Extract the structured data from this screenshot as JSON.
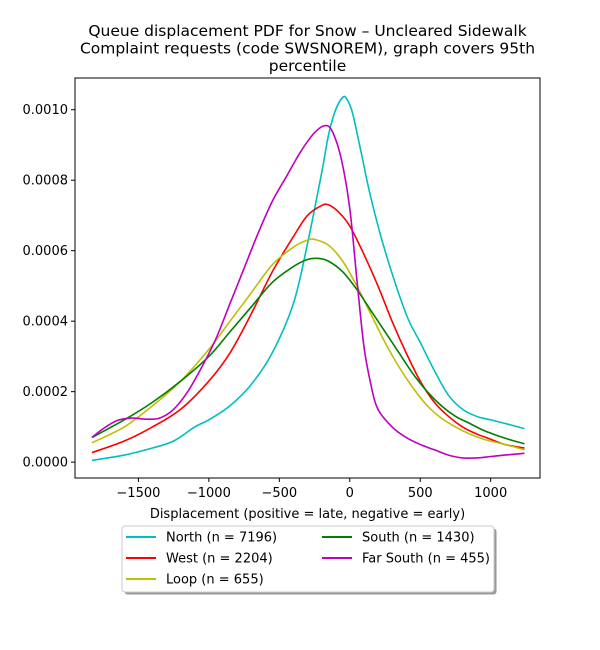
{
  "chart_data": {
    "type": "line",
    "title_lines": [
      "Queue displacement PDF for Snow – Uncleared Sidewalk",
      "Complaint  requests (code SWSNOREM), graph covers 95th",
      "percentile"
    ],
    "xlabel": "Displacement (positive = late, negative = early)",
    "ylabel": "",
    "xlim": [
      -1950,
      1350
    ],
    "ylim": [
      -4.5e-05,
      0.00109
    ],
    "x_ticks": [
      -1500,
      -1000,
      -500,
      0,
      500,
      1000
    ],
    "x_tick_labels": [
      "−1500",
      "−1000",
      "−500",
      "0",
      "500",
      "1000"
    ],
    "y_ticks": [
      0.0,
      0.0002,
      0.0004,
      0.0006,
      0.0008,
      0.001
    ],
    "y_tick_labels": [
      "0.0000",
      "0.0002",
      "0.0004",
      "0.0006",
      "0.0008",
      "0.0010"
    ],
    "grid": false,
    "legend_position": "below plot, centered, 2 columns",
    "series": [
      {
        "name": "North (n = 7196)",
        "color": "#00bfbf",
        "points": [
          [
            -1830,
            5e-06
          ],
          [
            -1600,
            2e-05
          ],
          [
            -1400,
            4e-05
          ],
          [
            -1250,
            6e-05
          ],
          [
            -1100,
            0.0001
          ],
          [
            -1000,
            0.00012
          ],
          [
            -850,
            0.00016
          ],
          [
            -700,
            0.00022
          ],
          [
            -550,
            0.00031
          ],
          [
            -400,
            0.00045
          ],
          [
            -300,
            0.00062
          ],
          [
            -200,
            0.00082
          ],
          [
            -150,
            0.00093
          ],
          [
            -100,
            0.001
          ],
          [
            -50,
            0.001035
          ],
          [
            -20,
            0.00103
          ],
          [
            20,
            0.00099
          ],
          [
            80,
            0.00088
          ],
          [
            150,
            0.00075
          ],
          [
            250,
            0.0006
          ],
          [
            400,
            0.00042
          ],
          [
            500,
            0.00034
          ],
          [
            600,
            0.00026
          ],
          [
            700,
            0.00019
          ],
          [
            800,
            0.00015
          ],
          [
            900,
            0.00013
          ],
          [
            1000,
            0.00012
          ],
          [
            1100,
            0.00011
          ],
          [
            1240,
            9.5e-05
          ]
        ]
      },
      {
        "name": "West (n = 2204)",
        "color": "#ff0000",
        "points": [
          [
            -1830,
            2.7e-05
          ],
          [
            -1600,
            6e-05
          ],
          [
            -1400,
            0.0001
          ],
          [
            -1200,
            0.00015
          ],
          [
            -1000,
            0.00023
          ],
          [
            -850,
            0.00031
          ],
          [
            -700,
            0.00042
          ],
          [
            -550,
            0.00054
          ],
          [
            -400,
            0.00064
          ],
          [
            -300,
            0.0007
          ],
          [
            -200,
            0.000728
          ],
          [
            -150,
            0.00073
          ],
          [
            -80,
            0.00071
          ],
          [
            0,
            0.00067
          ],
          [
            100,
            0.00059
          ],
          [
            200,
            0.0005
          ],
          [
            300,
            0.0004
          ],
          [
            400,
            0.00031
          ],
          [
            500,
            0.00023
          ],
          [
            600,
            0.00017
          ],
          [
            700,
            0.00013
          ],
          [
            800,
            0.0001
          ],
          [
            900,
            8e-05
          ],
          [
            1000,
            6.5e-05
          ],
          [
            1100,
            5e-05
          ],
          [
            1240,
            4e-05
          ]
        ]
      },
      {
        "name": "Loop (n = 655)",
        "color": "#bfbf00",
        "points": [
          [
            -1830,
            5.5e-05
          ],
          [
            -1600,
            0.0001
          ],
          [
            -1400,
            0.00016
          ],
          [
            -1200,
            0.00023
          ],
          [
            -1000,
            0.00032
          ],
          [
            -850,
            0.0004
          ],
          [
            -700,
            0.00048
          ],
          [
            -550,
            0.00056
          ],
          [
            -400,
            0.00061
          ],
          [
            -300,
            0.00063
          ],
          [
            -250,
            0.000632
          ],
          [
            -150,
            0.000615
          ],
          [
            -50,
            0.00057
          ],
          [
            50,
            0.0005
          ],
          [
            150,
            0.00042
          ],
          [
            250,
            0.00034
          ],
          [
            350,
            0.00027
          ],
          [
            450,
            0.00021
          ],
          [
            550,
            0.00016
          ],
          [
            650,
            0.000125
          ],
          [
            750,
            0.0001
          ],
          [
            850,
            8e-05
          ],
          [
            950,
            6.5e-05
          ],
          [
            1050,
            5.5e-05
          ],
          [
            1150,
            4.5e-05
          ],
          [
            1240,
            3.5e-05
          ]
        ]
      },
      {
        "name": "South (n = 1430)",
        "color": "#008000",
        "points": [
          [
            -1830,
            7e-05
          ],
          [
            -1600,
            0.00012
          ],
          [
            -1400,
            0.00017
          ],
          [
            -1200,
            0.00023
          ],
          [
            -1000,
            0.0003
          ],
          [
            -850,
            0.00037
          ],
          [
            -700,
            0.00044
          ],
          [
            -550,
            0.00051
          ],
          [
            -400,
            0.000555
          ],
          [
            -300,
            0.000575
          ],
          [
            -220,
            0.000578
          ],
          [
            -150,
            0.00057
          ],
          [
            -50,
            0.00054
          ],
          [
            50,
            0.00049
          ],
          [
            150,
            0.00043
          ],
          [
            250,
            0.00037
          ],
          [
            350,
            0.00031
          ],
          [
            450,
            0.00025
          ],
          [
            550,
            0.0002
          ],
          [
            650,
            0.00016
          ],
          [
            750,
            0.00013
          ],
          [
            850,
            0.00011
          ],
          [
            950,
            9e-05
          ],
          [
            1050,
            7.5e-05
          ],
          [
            1150,
            6.2e-05
          ],
          [
            1240,
            5.2e-05
          ]
        ]
      },
      {
        "name": "Far South (n = 455)",
        "color": "#bf00bf",
        "points": [
          [
            -1830,
            7e-05
          ],
          [
            -1750,
            9.5e-05
          ],
          [
            -1650,
            0.000118
          ],
          [
            -1550,
            0.000125
          ],
          [
            -1450,
            0.000122
          ],
          [
            -1350,
            0.000125
          ],
          [
            -1250,
            0.00015
          ],
          [
            -1150,
            0.0002
          ],
          [
            -1050,
            0.00027
          ],
          [
            -950,
            0.00035
          ],
          [
            -850,
            0.00045
          ],
          [
            -750,
            0.00055
          ],
          [
            -650,
            0.00065
          ],
          [
            -550,
            0.00074
          ],
          [
            -450,
            0.00081
          ],
          [
            -350,
            0.00088
          ],
          [
            -250,
            0.000935
          ],
          [
            -170,
            0.000955
          ],
          [
            -120,
            0.000935
          ],
          [
            -60,
            0.00086
          ],
          [
            0,
            0.00072
          ],
          [
            50,
            0.00052
          ],
          [
            100,
            0.00033
          ],
          [
            150,
            0.00022
          ],
          [
            200,
            0.00015
          ],
          [
            300,
            0.0001
          ],
          [
            400,
            7e-05
          ],
          [
            500,
            5e-05
          ],
          [
            600,
            3.5e-05
          ],
          [
            700,
            2e-05
          ],
          [
            800,
            1.2e-05
          ],
          [
            900,
            1.2e-05
          ],
          [
            1000,
            1.6e-05
          ],
          [
            1100,
            2e-05
          ],
          [
            1240,
            2.5e-05
          ]
        ]
      }
    ]
  }
}
